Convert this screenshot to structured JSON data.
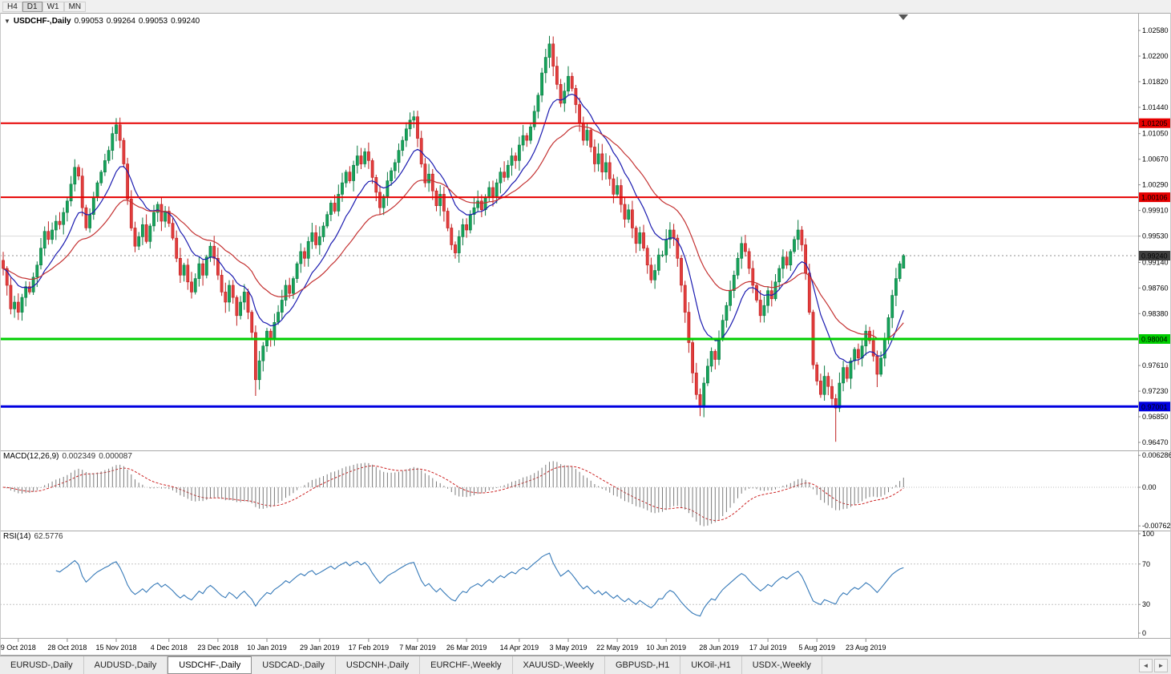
{
  "toolbar": {
    "timeframes": [
      {
        "label": "H4",
        "active": false
      },
      {
        "label": "D1",
        "active": true
      },
      {
        "label": "W1",
        "active": false
      },
      {
        "label": "MN",
        "active": false
      }
    ]
  },
  "chart_data": {
    "type": "candlestick",
    "title": "USDCHF-,Daily",
    "ohlc_display": {
      "open": "0.99053",
      "high": "0.99264",
      "low": "0.99053",
      "close": "0.99240"
    },
    "price_axis": {
      "max": 1.0258,
      "min": 0.9647,
      "labels": [
        "1.02580",
        "1.02200",
        "1.01820",
        "1.01440",
        "1.01050",
        "1.00670",
        "1.00290",
        "0.99910",
        "0.99530",
        "0.99140",
        "0.98760",
        "0.98380",
        "0.97610",
        "0.97230",
        "0.96850",
        "0.96470"
      ]
    },
    "levels": [
      {
        "value": 1.01205,
        "label": "1.01205",
        "color": "#e60000",
        "width": 2
      },
      {
        "value": 1.00106,
        "label": "1.00106",
        "color": "#e60000",
        "width": 2
      },
      {
        "value": 0.98004,
        "label": "0.98004",
        "color": "#00ce00",
        "width": 3
      },
      {
        "value": 0.97001,
        "label": "0.97001",
        "color": "#0000e0",
        "width": 3
      }
    ],
    "current_price": {
      "value": 0.9924,
      "label": "0.99240",
      "badge_color": "#3f3f3f"
    },
    "gridline": {
      "value": 0.9953
    },
    "style": {
      "up": "#16a35a",
      "up_border": "#0b7a42",
      "down": "#e23d3d",
      "down_border": "#bf1f1f",
      "ma_fast": "#1b1bb0",
      "ma_slow": "#c43131",
      "macd_hist": "#7b7b7b",
      "macd_signal": "#cc2222",
      "rsi": "#3579b8"
    },
    "moving_averages": [
      {
        "method": "ema",
        "period": 12,
        "color": "#1b1bb0"
      },
      {
        "method": "ema",
        "period": 30,
        "color": "#c43131"
      }
    ],
    "candles": {
      "closes": [
        0.9905,
        0.988,
        0.9845,
        0.9855,
        0.984,
        0.9862,
        0.9878,
        0.987,
        0.9892,
        0.991,
        0.9935,
        0.996,
        0.9948,
        0.9962,
        0.9975,
        0.997,
        0.9988,
        1.0005,
        1.003,
        1.0055,
        1.0042,
        0.9995,
        0.9965,
        0.9985,
        1.001,
        1.0032,
        1.0048,
        1.0065,
        1.008,
        1.0105,
        1.0118,
        1.0095,
        1.006,
        1.0008,
        0.9965,
        0.9938,
        0.9952,
        0.997,
        0.9945,
        0.9968,
        0.9988,
        1.0,
        0.9975,
        0.999,
        0.9972,
        0.995,
        0.992,
        0.9895,
        0.991,
        0.9885,
        0.987,
        0.989,
        0.9912,
        0.9895,
        0.9922,
        0.9938,
        0.992,
        0.9895,
        0.987,
        0.9855,
        0.988,
        0.9862,
        0.9835,
        0.9855,
        0.987,
        0.984,
        0.981,
        0.974,
        0.9768,
        0.979,
        0.9812,
        0.98,
        0.9825,
        0.984,
        0.9858,
        0.988,
        0.9868,
        0.989,
        0.9912,
        0.993,
        0.992,
        0.9945,
        0.9958,
        0.994,
        0.9952,
        0.9968,
        0.9985,
        1.0002,
        0.999,
        1.0015,
        1.0032,
        1.0048,
        1.0035,
        1.0058,
        1.0072,
        1.006,
        1.0078,
        1.0065,
        1.004,
        1.0018,
        0.9995,
        1.0012,
        1.0035,
        1.005,
        1.0062,
        1.008,
        1.0095,
        1.0112,
        1.0125,
        1.013,
        1.0098,
        1.006,
        1.0032,
        1.0045,
        1.002,
        0.9998,
        1.0015,
        0.999,
        0.9965,
        0.994,
        0.9928,
        0.9952,
        0.997,
        0.9962,
        0.9985,
        0.9995,
        1.0005,
        0.9992,
        1.001,
        1.0025,
        1.0012,
        1.0032,
        1.0048,
        1.004,
        1.0058,
        1.0072,
        1.0065,
        1.0088,
        1.0102,
        1.0095,
        1.0115,
        1.0138,
        1.0162,
        1.0195,
        1.0218,
        1.0238,
        1.0205,
        1.0178,
        1.015,
        1.0168,
        1.019,
        1.0172,
        1.0148,
        1.012,
        1.0095,
        1.011,
        1.0085,
        1.006,
        1.0075,
        1.0048,
        1.0062,
        1.0038,
        1.0015,
        1.0028,
        1.0,
        0.9978,
        0.9992,
        0.9965,
        0.9942,
        0.9958,
        0.9935,
        0.991,
        0.9888,
        0.9902,
        0.9925,
        0.9925,
        0.9948,
        0.9962,
        0.995,
        0.992,
        0.988,
        0.984,
        0.9795,
        0.975,
        0.9718,
        0.97,
        0.9735,
        0.976,
        0.9782,
        0.977,
        0.98,
        0.9828,
        0.985,
        0.9872,
        0.9895,
        0.992,
        0.9942,
        0.993,
        0.9905,
        0.988,
        0.9858,
        0.9835,
        0.985,
        0.9872,
        0.986,
        0.9885,
        0.9905,
        0.9922,
        0.991,
        0.993,
        0.9948,
        0.9962,
        0.994,
        0.9898,
        0.984,
        0.9762,
        0.9738,
        0.9718,
        0.9745,
        0.973,
        0.9712,
        0.9698,
        0.9735,
        0.9758,
        0.9742,
        0.9768,
        0.9785,
        0.9772,
        0.979,
        0.9812,
        0.9798,
        0.9775,
        0.9748,
        0.9772,
        0.98,
        0.9832,
        0.9865,
        0.989,
        0.9912,
        0.9924
      ],
      "extremes": [
        {
          "i": 19,
          "high": 1.0067
        },
        {
          "i": 30,
          "high": 1.0128
        },
        {
          "i": 67,
          "low": 0.9716
        },
        {
          "i": 109,
          "high": 1.0139
        },
        {
          "i": 145,
          "high": 1.025
        },
        {
          "i": 150,
          "high": 1.0205
        },
        {
          "i": 196,
          "high": 0.9952
        },
        {
          "i": 211,
          "high": 0.9977
        },
        {
          "i": 221,
          "low": 0.9648
        },
        {
          "i": 232,
          "low": 0.9729
        }
      ],
      "last": {
        "open": 0.99053,
        "high": 0.99264,
        "low": 0.99053,
        "close": 0.9924
      }
    },
    "macd": {
      "label": "MACD(12,26,9)",
      "value_main": "0.002349",
      "value_signal": "0.000087",
      "fast": 12,
      "slow": 26,
      "signal": 9,
      "scale_labels": [
        "0.006286",
        "0.00",
        "-0.00762"
      ],
      "range": {
        "max": 0.0063,
        "min": -0.0076
      }
    },
    "rsi": {
      "label": "RSI(14)",
      "value": "62.5776",
      "period": 14,
      "scale_labels": [
        "100",
        "70",
        "30",
        "0"
      ],
      "guides": [
        70,
        30
      ]
    },
    "dates": [
      {
        "label": "9 Oct 2018",
        "i": 4
      },
      {
        "label": "28 Oct 2018",
        "i": 17
      },
      {
        "label": "15 Nov 2018",
        "i": 30
      },
      {
        "label": "4 Dec 2018",
        "i": 44
      },
      {
        "label": "23 Dec 2018",
        "i": 57
      },
      {
        "label": "10 Jan 2019",
        "i": 70
      },
      {
        "label": "29 Jan 2019",
        "i": 84
      },
      {
        "label": "17 Feb 2019",
        "i": 97
      },
      {
        "label": "7 Mar 2019",
        "i": 110
      },
      {
        "label": "26 Mar 2019",
        "i": 123
      },
      {
        "label": "14 Apr 2019",
        "i": 137
      },
      {
        "label": "3 May 2019",
        "i": 150
      },
      {
        "label": "22 May 2019",
        "i": 163
      },
      {
        "label": "10 Jun 2019",
        "i": 176
      },
      {
        "label": "28 Jun 2019",
        "i": 190
      },
      {
        "label": "17 Jul 2019",
        "i": 203
      },
      {
        "label": "5 Aug 2019",
        "i": 216
      },
      {
        "label": "23 Aug 2019",
        "i": 229
      }
    ]
  },
  "tabs": {
    "items": [
      {
        "label": "EURUSD-,Daily",
        "active": false
      },
      {
        "label": "AUDUSD-,Daily",
        "active": false
      },
      {
        "label": "USDCHF-,Daily",
        "active": true
      },
      {
        "label": "USDCAD-,Daily",
        "active": false
      },
      {
        "label": "USDCNH-,Daily",
        "active": false
      },
      {
        "label": "EURCHF-,Weekly",
        "active": false
      },
      {
        "label": "XAUUSD-,Weekly",
        "active": false
      },
      {
        "label": "GBPUSD-,H1",
        "active": false
      },
      {
        "label": "UKOil-,H1",
        "active": false
      },
      {
        "label": "USDX-,Weekly",
        "active": false
      }
    ],
    "scroll_left": "◄",
    "scroll_right": "►"
  }
}
